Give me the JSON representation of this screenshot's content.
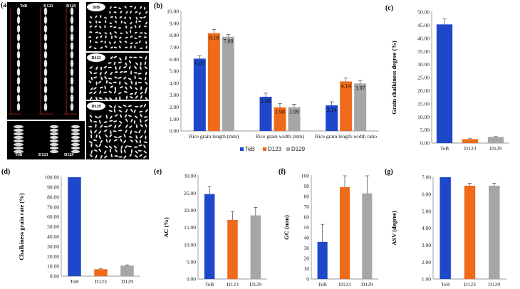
{
  "panel_labels": {
    "a": "(a)",
    "b": "(b)",
    "c": "(c)",
    "d": "(d)",
    "e1": "(e)",
    "f": "(f)",
    "g": "(g)"
  },
  "photos": {
    "strip_top": [
      "TeB",
      "D123",
      "D129"
    ],
    "strip_bottom": [
      "TeB",
      "D123",
      "D129"
    ],
    "grid": [
      "TeB",
      "D123",
      "D129"
    ]
  },
  "colors": {
    "TeB": "#1f47c9",
    "D123": "#f06a1b",
    "D129": "#a6a6a6"
  },
  "chart_data": [
    {
      "id": "b",
      "type": "bar",
      "title": "",
      "categories": [
        "Rice grain length (mm)",
        "Rice grain width (mm)",
        "Rice grain length-width ratio"
      ],
      "series": [
        {
          "name": "TeB",
          "values": [
            6.05,
            2.86,
            2.14
          ],
          "errors": [
            0.25,
            0.3,
            0.3
          ],
          "labels": [
            "6.05",
            "2.86",
            "2.14"
          ]
        },
        {
          "name": "D123",
          "values": [
            8.18,
            1.98,
            4.14
          ],
          "errors": [
            0.3,
            0.3,
            0.3
          ],
          "labels": [
            "8.18",
            "1.98",
            "4.14"
          ]
        },
        {
          "name": "D129",
          "values": [
            7.88,
            1.99,
            3.97
          ],
          "errors": [
            0.2,
            0.25,
            0.25
          ],
          "labels": [
            "7.88",
            "1.99",
            "3.97"
          ]
        }
      ],
      "ylim": [
        0,
        10
      ],
      "yticks": [
        "0.00",
        "1.00",
        "2.00",
        "3.00",
        "4.00",
        "5.00",
        "6.00",
        "7.00",
        "8.00",
        "9.00",
        "10.00"
      ],
      "xlabel": "",
      "ylabel": "",
      "legend": [
        "TeB",
        "D123",
        "D129"
      ],
      "legend_position": "bottom"
    },
    {
      "id": "c",
      "type": "bar",
      "categories": [
        "TeB",
        "D123",
        "D129"
      ],
      "values": [
        45.3,
        1.5,
        2.3
      ],
      "errors": [
        2.2,
        0.2,
        0.2
      ],
      "ylim": [
        0,
        50
      ],
      "yticks": [
        "0.00",
        "5.00",
        "10.00",
        "15.00",
        "20.00",
        "25.00",
        "30.00",
        "35.00",
        "40.00",
        "45.00",
        "50.00"
      ],
      "ylabel": "Grain chalkiness degree (%)"
    },
    {
      "id": "d",
      "type": "bar",
      "categories": [
        "TeB",
        "D123",
        "D129"
      ],
      "values": [
        100,
        7.0,
        10.8
      ],
      "errors": [
        0,
        0.5,
        0.6
      ],
      "ylim": [
        0,
        100
      ],
      "yticks": [
        "0.00",
        "10.00",
        "20.00",
        "30.00",
        "40.00",
        "50.00",
        "60.00",
        "70.00",
        "80.00",
        "90.00",
        "100.00"
      ],
      "ylabel": "Chalkiness grain rate (%)"
    },
    {
      "id": "e",
      "type": "bar",
      "categories": [
        "TeB",
        "D123",
        "D129"
      ],
      "values": [
        24.7,
        17.2,
        18.5
      ],
      "errors": [
        2.3,
        2.4,
        2.3
      ],
      "ylim": [
        0,
        30
      ],
      "yticks": [
        "0.00",
        "5.00",
        "10.00",
        "15.00",
        "20.00",
        "25.00",
        "30.00"
      ],
      "ylabel": "AC (%)"
    },
    {
      "id": "f",
      "type": "bar",
      "categories": [
        "TeB",
        "D123",
        "D129"
      ],
      "values": [
        36,
        89,
        83
      ],
      "errors": [
        17,
        11,
        17
      ],
      "ylim": [
        0,
        100
      ],
      "yticks": [
        "0",
        "10",
        "20",
        "30",
        "40",
        "50",
        "60",
        "70",
        "80",
        "90",
        "100"
      ],
      "ylabel": "GC (mm)"
    },
    {
      "id": "g",
      "type": "bar",
      "categories": [
        "TeB",
        "D123",
        "D129"
      ],
      "values": [
        7.0,
        6.5,
        6.5
      ],
      "errors": [
        0,
        0.15,
        0.15
      ],
      "ylim": [
        1,
        7
      ],
      "yticks": [
        "1.00",
        "2.00",
        "3.00",
        "4.00",
        "5.00",
        "6.00",
        "7.00"
      ],
      "ylabel": "ASV (degree)"
    }
  ]
}
